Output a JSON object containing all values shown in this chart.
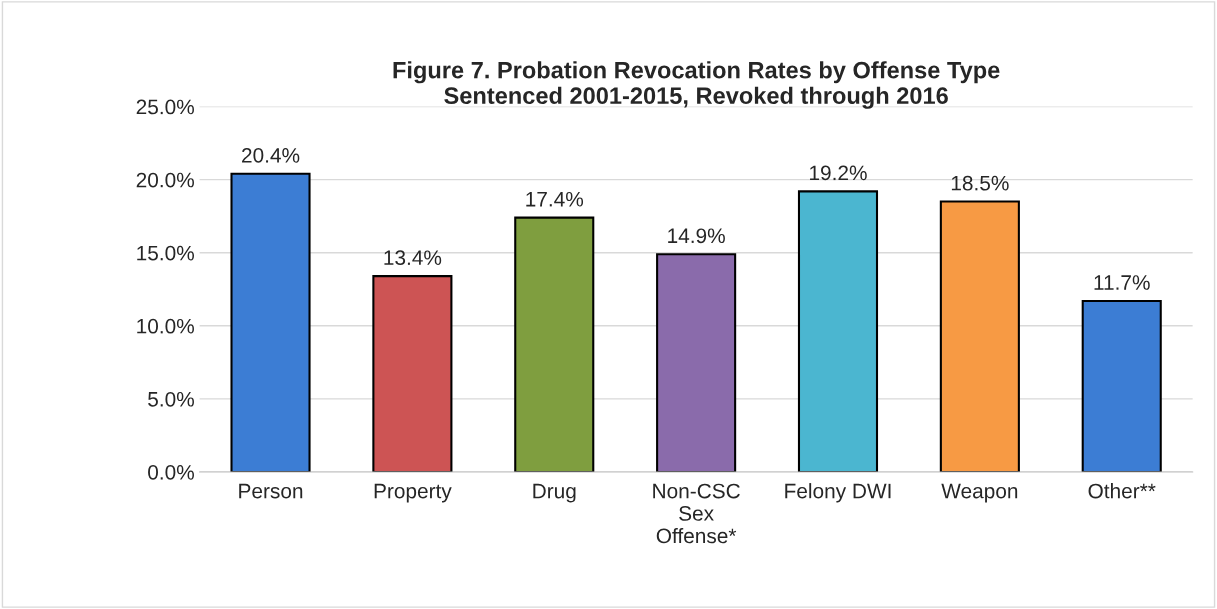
{
  "chart_data": {
    "type": "bar",
    "title": "Figure 7. Probation Revocation Rates by Offense Type\nSentenced 2001-2015, Revoked through 2016",
    "categories": [
      "Person",
      "Property",
      "Drug",
      "Non-CSC\nSex\nOffense*",
      "Felony DWI",
      "Weapon",
      "Other**"
    ],
    "values": [
      20.4,
      13.4,
      17.4,
      14.9,
      19.2,
      18.5,
      11.7
    ],
    "colors": [
      "#3c7dd4",
      "#cd5454",
      "#7f9e3f",
      "#8a6bab",
      "#4bb6d0",
      "#f79a44",
      "#3c7dd4"
    ],
    "value_labels": [
      "20.4%",
      "13.4%",
      "17.4%",
      "14.9%",
      "19.2%",
      "18.5%",
      "11.7%"
    ],
    "ylim": [
      0,
      25
    ],
    "yticks": [
      {
        "value": 0,
        "label": "0.0%"
      },
      {
        "value": 5,
        "label": "5.0%"
      },
      {
        "value": 10,
        "label": "10.0%"
      },
      {
        "value": 15,
        "label": "15.0%"
      },
      {
        "value": 20,
        "label": "20.0%"
      },
      {
        "value": 25,
        "label": "25.0%"
      }
    ],
    "grid": "y"
  }
}
